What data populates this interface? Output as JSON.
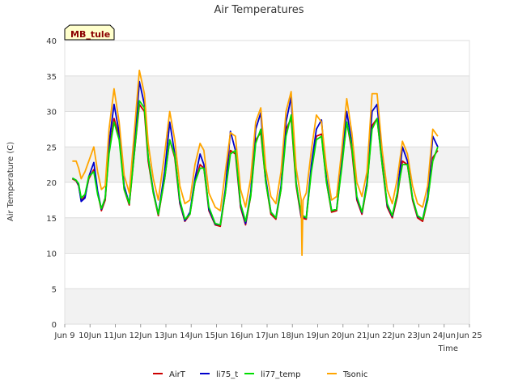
{
  "chart_data": {
    "type": "line",
    "title": "Air Temperatures",
    "xlabel": "Time",
    "ylabel": "Air Temperature (C)",
    "site_tag": "MB_tule",
    "xlim": [
      9.0,
      25.0
    ],
    "ylim": [
      0,
      40
    ],
    "yticks": [
      0,
      5,
      10,
      15,
      20,
      25,
      30,
      35,
      40
    ],
    "xticks": [
      {
        "value": 9,
        "label": "Jun 9"
      },
      {
        "value": 10,
        "label": "10Jun"
      },
      {
        "value": 11,
        "label": "11Jun"
      },
      {
        "value": 12,
        "label": "12Jun"
      },
      {
        "value": 13,
        "label": "13Jun"
      },
      {
        "value": 14,
        "label": "14Jun"
      },
      {
        "value": 15,
        "label": "15Jun"
      },
      {
        "value": 16,
        "label": "16Jun"
      },
      {
        "value": 17,
        "label": "17Jun"
      },
      {
        "value": 18,
        "label": "18Jun"
      },
      {
        "value": 19,
        "label": "19Jun"
      },
      {
        "value": 20,
        "label": "20Jun"
      },
      {
        "value": 21,
        "label": "21Jun"
      },
      {
        "value": 22,
        "label": "22Jun"
      },
      {
        "value": 23,
        "label": "23Jun"
      },
      {
        "value": 24,
        "label": "24Jun"
      },
      {
        "value": 25,
        "label": "Jun 25"
      }
    ],
    "grid": true,
    "legend_position": "bottom",
    "series": [
      {
        "name": "AirT",
        "color": "#cc0000",
        "x": [
          9.3,
          9.45,
          9.55,
          9.65,
          9.8,
          9.95,
          10.15,
          10.3,
          10.45,
          10.6,
          10.75,
          10.95,
          11.15,
          11.35,
          11.55,
          11.75,
          11.95,
          12.15,
          12.3,
          12.5,
          12.7,
          12.95,
          13.15,
          13.35,
          13.55,
          13.75,
          13.95,
          14.15,
          14.35,
          14.5,
          14.7,
          14.95,
          15.15,
          15.35,
          15.55,
          15.75,
          15.95,
          16.15,
          16.35,
          16.55,
          16.75,
          16.95,
          17.15,
          17.35,
          17.55,
          17.75,
          17.95,
          18.15,
          18.35,
          18.55,
          18.75,
          18.95,
          19.15,
          19.35,
          19.55,
          19.75,
          19.95,
          20.15,
          20.35,
          20.55,
          20.75,
          20.95,
          21.15,
          21.35,
          21.55,
          21.75,
          21.95,
          22.15,
          22.35,
          22.55,
          22.75,
          22.95,
          23.15,
          23.35,
          23.55,
          23.75
        ],
        "y": [
          20.5,
          20.2,
          19.5,
          17.5,
          18.0,
          20.5,
          21.8,
          18.5,
          16.0,
          17.5,
          24.5,
          29.0,
          26.5,
          19.0,
          16.8,
          24.0,
          31.0,
          30.0,
          23.0,
          18.5,
          15.3,
          20.5,
          26.0,
          23.5,
          17.0,
          14.5,
          15.5,
          20.0,
          22.5,
          22.0,
          16.0,
          14.0,
          13.8,
          18.5,
          24.5,
          24.0,
          16.5,
          14.0,
          18.0,
          26.0,
          27.0,
          20.0,
          15.5,
          14.8,
          19.0,
          27.5,
          29.0,
          19.5,
          15.0,
          14.8,
          22.0,
          26.5,
          26.8,
          20.0,
          15.8,
          16.0,
          22.5,
          28.5,
          24.5,
          17.5,
          15.5,
          19.5,
          28.0,
          29.0,
          22.5,
          16.5,
          15.0,
          18.0,
          23.0,
          22.5,
          17.5,
          15.0,
          14.5,
          17.5,
          23.5,
          24.5
        ]
      },
      {
        "name": "li75_t",
        "color": "#0000cc",
        "x": [
          9.3,
          9.45,
          9.55,
          9.65,
          9.8,
          9.95,
          10.15,
          10.3,
          10.45,
          10.6,
          10.75,
          10.95,
          11.15,
          11.35,
          11.55,
          11.75,
          11.95,
          12.15,
          12.3,
          12.5,
          12.7,
          12.95,
          13.15,
          13.35,
          13.55,
          13.75,
          13.95,
          14.15,
          14.35,
          14.5,
          14.7,
          14.95,
          15.15,
          15.35,
          15.55,
          15.75,
          15.95,
          16.15,
          16.35,
          16.55,
          16.75,
          16.95,
          17.15,
          17.35,
          17.55,
          17.75,
          17.95,
          18.15,
          18.35,
          18.55,
          18.75,
          18.95,
          19.15,
          19.35,
          19.55,
          19.75,
          19.95,
          20.15,
          20.35,
          20.55,
          20.75,
          20.95,
          21.15,
          21.35,
          21.55,
          21.75,
          21.95,
          22.15,
          22.35,
          22.55,
          22.75,
          22.95,
          23.15,
          23.35,
          23.55,
          23.75
        ],
        "y": [
          20.6,
          20.3,
          19.6,
          17.3,
          17.8,
          20.8,
          22.8,
          18.8,
          16.2,
          17.8,
          25.5,
          31.0,
          27.0,
          19.5,
          17.0,
          25.0,
          34.2,
          31.0,
          23.5,
          18.8,
          15.5,
          21.5,
          28.5,
          24.0,
          17.2,
          14.6,
          15.8,
          20.5,
          24.0,
          22.5,
          16.2,
          14.1,
          14.0,
          19.0,
          27.2,
          24.5,
          16.8,
          14.2,
          18.5,
          27.5,
          29.8,
          20.5,
          15.8,
          15.0,
          19.5,
          28.5,
          32.0,
          20.0,
          15.2,
          15.0,
          22.5,
          27.5,
          28.8,
          20.5,
          16.0,
          16.2,
          23.0,
          30.0,
          25.5,
          17.8,
          15.7,
          20.0,
          30.0,
          31.0,
          23.0,
          16.8,
          15.2,
          18.5,
          25.0,
          23.0,
          17.8,
          15.2,
          14.8,
          18.0,
          26.5,
          25.0
        ]
      },
      {
        "name": "li77_temp",
        "color": "#00dd00",
        "x": [
          9.3,
          9.45,
          9.55,
          9.65,
          9.8,
          9.95,
          10.15,
          10.3,
          10.45,
          10.6,
          10.75,
          10.95,
          11.15,
          11.35,
          11.55,
          11.75,
          11.95,
          12.15,
          12.3,
          12.5,
          12.7,
          12.95,
          13.15,
          13.35,
          13.55,
          13.75,
          13.95,
          14.15,
          14.35,
          14.5,
          14.7,
          14.95,
          15.15,
          15.35,
          15.55,
          15.75,
          15.95,
          16.15,
          16.35,
          16.55,
          16.75,
          16.95,
          17.15,
          17.35,
          17.55,
          17.75,
          17.95,
          18.15,
          18.35,
          18.55,
          18.75,
          18.95,
          19.15,
          19.35,
          19.55,
          19.75,
          19.95,
          20.15,
          20.35,
          20.55,
          20.75,
          20.95,
          21.15,
          21.35,
          21.55,
          21.75,
          21.95,
          22.15,
          22.35,
          22.55,
          22.75,
          22.95,
          23.15,
          23.35,
          23.55,
          23.75
        ],
        "y": [
          20.6,
          20.3,
          19.8,
          17.8,
          18.3,
          20.8,
          21.5,
          18.3,
          16.3,
          17.8,
          24.0,
          28.5,
          26.0,
          19.0,
          17.0,
          24.0,
          31.5,
          30.5,
          23.5,
          18.5,
          15.5,
          20.5,
          26.0,
          23.8,
          17.5,
          14.8,
          15.5,
          20.0,
          22.0,
          22.0,
          16.5,
          14.2,
          14.0,
          18.5,
          24.0,
          24.5,
          17.0,
          14.5,
          18.0,
          25.5,
          27.5,
          20.0,
          15.8,
          15.0,
          19.0,
          26.5,
          29.5,
          19.8,
          15.5,
          15.0,
          21.5,
          26.0,
          26.5,
          20.0,
          16.0,
          16.2,
          22.0,
          28.5,
          25.0,
          18.0,
          15.8,
          19.5,
          27.5,
          29.0,
          22.5,
          17.0,
          15.3,
          18.5,
          22.5,
          22.5,
          17.8,
          15.3,
          14.8,
          17.5,
          23.0,
          25.0
        ]
      },
      {
        "name": "Tsonic",
        "color": "#ffa500",
        "x": [
          9.3,
          9.45,
          9.55,
          9.65,
          9.8,
          9.95,
          10.15,
          10.3,
          10.45,
          10.6,
          10.75,
          10.95,
          11.15,
          11.35,
          11.55,
          11.75,
          11.95,
          12.15,
          12.3,
          12.5,
          12.7,
          12.95,
          13.15,
          13.35,
          13.55,
          13.75,
          13.95,
          14.15,
          14.35,
          14.5,
          14.7,
          14.95,
          15.15,
          15.35,
          15.55,
          15.75,
          15.95,
          16.15,
          16.35,
          16.55,
          16.75,
          16.95,
          17.15,
          17.35,
          17.55,
          17.75,
          17.95,
          18.15,
          18.35,
          18.38,
          18.42,
          18.55,
          18.75,
          18.95,
          19.15,
          19.35,
          19.55,
          19.75,
          19.95,
          20.15,
          20.35,
          20.55,
          20.75,
          20.95,
          21.15,
          21.35,
          21.55,
          21.75,
          21.95,
          22.15,
          22.35,
          22.55,
          22.75,
          22.95,
          23.15,
          23.35,
          23.55,
          23.75
        ],
        "y": [
          23.0,
          23.0,
          22.0,
          20.5,
          21.5,
          23.0,
          25.0,
          21.5,
          19.0,
          19.5,
          27.5,
          33.2,
          28.5,
          21.0,
          18.5,
          27.0,
          35.8,
          32.5,
          25.5,
          20.5,
          17.5,
          24.0,
          30.0,
          26.0,
          19.5,
          17.0,
          17.5,
          22.5,
          25.5,
          24.5,
          18.5,
          16.5,
          16.0,
          21.5,
          27.0,
          26.5,
          19.0,
          16.5,
          20.5,
          28.5,
          30.5,
          22.0,
          18.0,
          17.0,
          21.5,
          30.0,
          32.8,
          22.0,
          17.5,
          9.7,
          17.5,
          18.5,
          24.5,
          29.5,
          28.5,
          22.0,
          17.5,
          18.0,
          24.5,
          31.8,
          27.0,
          20.0,
          18.0,
          21.5,
          32.5,
          32.5,
          24.5,
          19.0,
          17.0,
          20.5,
          25.8,
          24.0,
          19.5,
          17.0,
          16.5,
          19.5,
          27.5,
          26.5
        ]
      }
    ]
  }
}
